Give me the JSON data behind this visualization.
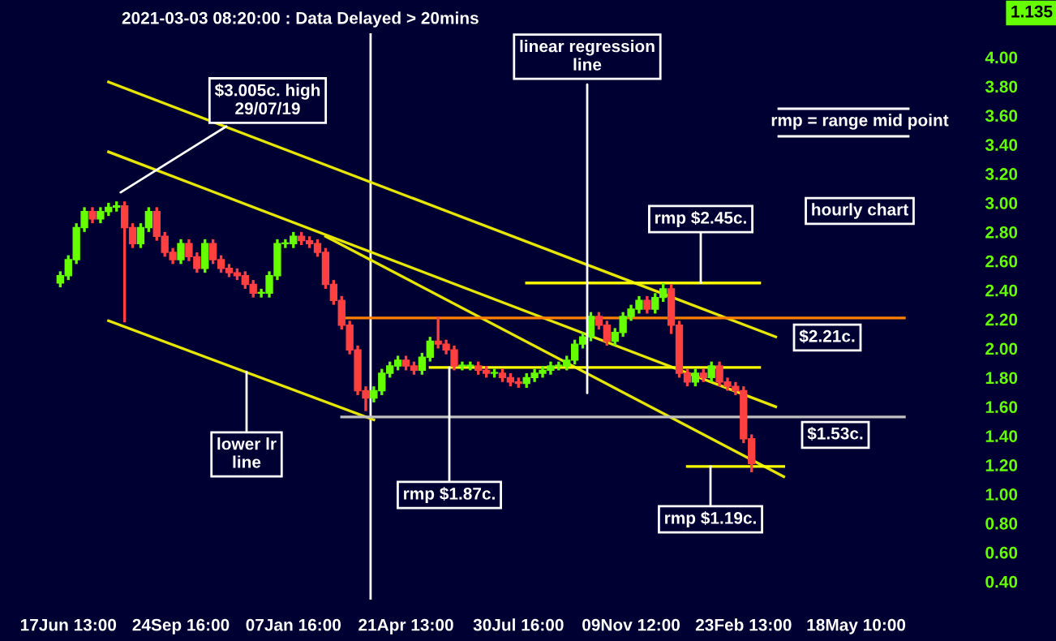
{
  "chart_data": {
    "type": "candlestick",
    "title": "2021-03-03 08:20:00 : Data Delayed > 20mins",
    "categories": [
      null,
      null,
      null,
      null,
      null,
      null,
      null,
      null,
      "17Jun 13:00",
      null,
      null,
      null,
      null,
      null,
      null,
      null,
      null,
      null,
      null,
      null,
      null,
      null,
      "24Sep 16:00",
      null,
      null,
      null,
      null,
      null,
      null,
      null,
      null,
      null,
      null,
      null,
      null,
      null,
      "07Jan 16:00",
      null,
      null,
      null,
      null,
      null,
      null,
      null,
      null,
      null,
      null,
      null,
      null,
      null,
      "21Apr 13:00",
      null,
      null,
      null,
      null,
      null,
      null,
      null,
      null,
      null,
      null,
      null,
      null,
      null,
      "30Jul 16:00",
      null,
      null,
      null,
      null,
      null,
      null,
      null,
      null,
      null,
      null,
      null,
      null,
      null,
      "09Nov 12:00",
      null,
      null,
      null,
      null,
      null,
      null,
      null,
      null,
      null,
      null,
      null,
      null,
      null,
      "23Feb 13:00",
      null,
      null,
      null,
      null,
      null,
      null,
      null,
      null,
      null,
      null,
      null,
      null,
      null,
      "18May 10:00",
      null,
      null,
      null,
      null,
      null,
      null
    ],
    "ohlc": [
      null,
      null,
      null,
      null,
      null,
      null,
      null,
      [
        2.45,
        2.53,
        2.42,
        2.5
      ],
      [
        2.5,
        2.64,
        2.47,
        2.61
      ],
      [
        2.61,
        2.86,
        2.58,
        2.83
      ],
      [
        2.83,
        2.97,
        2.8,
        2.94
      ],
      [
        2.94,
        2.97,
        2.86,
        2.89
      ],
      [
        2.89,
        2.97,
        2.86,
        2.94
      ],
      [
        2.94,
        3.0,
        2.91,
        2.97
      ],
      [
        2.97,
        3.01,
        2.94,
        2.98
      ],
      [
        2.98,
        3.01,
        2.18,
        2.83
      ],
      [
        2.83,
        2.86,
        2.69,
        2.72
      ],
      [
        2.72,
        2.86,
        2.69,
        2.83
      ],
      [
        2.83,
        2.97,
        2.8,
        2.94
      ],
      [
        2.94,
        2.97,
        2.74,
        2.77
      ],
      [
        2.77,
        2.8,
        2.63,
        2.66
      ],
      [
        2.66,
        2.69,
        2.58,
        2.61
      ],
      [
        2.61,
        2.75,
        2.58,
        2.72
      ],
      [
        2.72,
        2.75,
        2.6,
        2.63
      ],
      [
        2.63,
        2.66,
        2.52,
        2.55
      ],
      [
        2.55,
        2.75,
        2.52,
        2.72
      ],
      [
        2.72,
        2.75,
        2.58,
        2.61
      ],
      [
        2.61,
        2.64,
        2.52,
        2.55
      ],
      [
        2.55,
        2.58,
        2.49,
        2.52
      ],
      [
        2.52,
        2.55,
        2.47,
        2.5
      ],
      [
        2.5,
        2.53,
        2.41,
        2.44
      ],
      [
        2.44,
        2.47,
        2.35,
        2.38
      ],
      [
        2.38,
        2.41,
        2.35,
        2.38
      ],
      [
        2.38,
        2.53,
        2.35,
        2.5
      ],
      [
        2.5,
        2.75,
        2.47,
        2.72
      ],
      [
        2.72,
        2.75,
        2.69,
        2.72
      ],
      [
        2.72,
        2.8,
        2.69,
        2.77
      ],
      [
        2.77,
        2.8,
        2.71,
        2.74
      ],
      [
        2.74,
        2.77,
        2.69,
        2.72
      ],
      [
        2.72,
        2.75,
        2.63,
        2.66
      ],
      [
        2.66,
        2.69,
        2.41,
        2.44
      ],
      [
        2.44,
        2.47,
        2.3,
        2.33
      ],
      [
        2.33,
        2.36,
        2.13,
        2.16
      ],
      [
        2.16,
        2.19,
        1.96,
        1.99
      ],
      [
        1.99,
        2.02,
        1.68,
        1.71
      ],
      [
        1.71,
        1.74,
        1.57,
        1.66
      ],
      [
        1.66,
        1.74,
        1.63,
        1.71
      ],
      [
        1.71,
        1.86,
        1.68,
        1.83
      ],
      [
        1.83,
        1.91,
        1.8,
        1.88
      ],
      [
        1.88,
        1.95,
        1.85,
        1.92
      ],
      [
        1.92,
        1.95,
        1.85,
        1.88
      ],
      [
        1.88,
        1.91,
        1.82,
        1.85
      ],
      [
        1.85,
        1.97,
        1.82,
        1.94
      ],
      [
        1.94,
        2.08,
        1.91,
        2.05
      ],
      [
        2.05,
        2.22,
        2.0,
        2.03
      ],
      [
        2.03,
        2.06,
        1.96,
        1.99
      ],
      [
        1.99,
        2.02,
        1.85,
        1.88
      ],
      [
        1.88,
        1.91,
        1.85,
        1.88
      ],
      [
        1.88,
        1.91,
        1.85,
        1.88
      ],
      [
        1.88,
        1.91,
        1.82,
        1.85
      ],
      [
        1.85,
        1.88,
        1.8,
        1.83
      ],
      [
        1.83,
        1.86,
        1.8,
        1.83
      ],
      [
        1.83,
        1.86,
        1.77,
        1.8
      ],
      [
        1.8,
        1.83,
        1.74,
        1.77
      ],
      [
        1.77,
        1.8,
        1.73,
        1.76
      ],
      [
        1.76,
        1.83,
        1.73,
        1.8
      ],
      [
        1.8,
        1.86,
        1.77,
        1.83
      ],
      [
        1.83,
        1.88,
        1.8,
        1.85
      ],
      [
        1.85,
        1.91,
        1.82,
        1.88
      ],
      [
        1.88,
        1.91,
        1.85,
        1.88
      ],
      [
        1.88,
        1.95,
        1.85,
        1.92
      ],
      [
        1.92,
        2.06,
        1.89,
        2.03
      ],
      [
        2.03,
        2.11,
        2.0,
        2.08
      ],
      [
        2.08,
        2.25,
        2.05,
        2.22
      ],
      [
        2.22,
        2.25,
        2.13,
        2.16
      ],
      [
        2.16,
        2.19,
        2.02,
        2.05
      ],
      [
        2.05,
        2.14,
        2.02,
        2.11
      ],
      [
        2.11,
        2.25,
        2.08,
        2.22
      ],
      [
        2.22,
        2.3,
        2.19,
        2.27
      ],
      [
        2.27,
        2.36,
        2.24,
        2.33
      ],
      [
        2.33,
        2.36,
        2.24,
        2.27
      ],
      [
        2.27,
        2.38,
        2.24,
        2.35
      ],
      [
        2.35,
        2.45,
        2.32,
        2.41
      ],
      [
        2.41,
        2.44,
        2.1,
        2.16
      ],
      [
        2.16,
        2.19,
        1.8,
        1.83
      ],
      [
        1.83,
        1.86,
        1.74,
        1.77
      ],
      [
        1.77,
        1.86,
        1.74,
        1.83
      ],
      [
        1.83,
        1.86,
        1.77,
        1.8
      ],
      [
        1.8,
        1.91,
        1.77,
        1.88
      ],
      [
        1.88,
        1.91,
        1.74,
        1.77
      ],
      [
        1.77,
        1.8,
        1.71,
        1.74
      ],
      [
        1.74,
        1.77,
        1.68,
        1.71
      ],
      [
        1.71,
        1.74,
        1.35,
        1.38
      ],
      [
        1.38,
        1.41,
        1.15,
        1.21
      ],
      null,
      null,
      null,
      null,
      null,
      null,
      null,
      null,
      null,
      null,
      null,
      null,
      null,
      null,
      null,
      null,
      null,
      null,
      null
    ],
    "colors": [
      null,
      null,
      null,
      null,
      null,
      null,
      null,
      "#66ff00",
      "#66ff00",
      "#66ff00",
      "#66ff00",
      "#ff4040",
      "#66ff00",
      "#66ff00",
      "#66ff00",
      "#ff4040",
      "#ff4040",
      "#66ff00",
      "#66ff00",
      "#ff4040",
      "#ff4040",
      "#ff4040",
      "#66ff00",
      "#ff4040",
      "#ff4040",
      "#66ff00",
      "#ff4040",
      "#ff4040",
      "#ff4040",
      "#ff4040",
      "#ff4040",
      "#ff4040",
      "#66ff00",
      "#66ff00",
      "#66ff00",
      "#66ff00",
      "#66ff00",
      "#ff4040",
      "#ff4040",
      "#ff4040",
      "#ff4040",
      "#ff4040",
      "#ff4040",
      "#ff4040",
      "#ff4040",
      "#ff4040",
      "#66ff00",
      "#66ff00",
      "#66ff00",
      "#66ff00",
      "#ff4040",
      "#ff4040",
      "#66ff00",
      "#66ff00",
      "#ff4040",
      "#ff4040",
      "#ff4040",
      "#66ff00",
      "#66ff00",
      "#ff4040",
      "#ff4040",
      "#66ff00",
      "#ff4040",
      "#ff4040",
      "#ff4040",
      "#66ff00",
      "#66ff00",
      "#66ff00",
      "#66ff00",
      "#66ff00",
      "#66ff00",
      "#66ff00",
      "#66ff00",
      "#66ff00",
      "#ff4040",
      "#ff4040",
      "#66ff00",
      "#66ff00",
      "#66ff00",
      "#66ff00",
      "#ff4040",
      "#66ff00",
      "#66ff00",
      "#ff4040",
      "#ff4040",
      "#ff4040",
      "#66ff00",
      "#ff4040",
      "#66ff00",
      "#ff4040",
      "#ff4040",
      "#ff4040",
      "#ff4040",
      "#ff4040",
      null,
      null,
      null,
      null,
      null,
      null,
      null,
      null,
      null,
      null,
      null,
      null,
      null,
      null,
      null,
      null,
      null,
      null,
      null
    ],
    "series": [
      {
        "type": "line",
        "color": "#e6e600",
        "values": [
          null,
          null,
          null,
          null,
          null,
          null,
          null,
          null,
          null,
          null,
          null,
          null,
          null,
          3.83,
          null,
          null,
          null,
          null,
          null,
          null,
          null,
          null,
          null,
          null,
          null,
          null,
          null,
          null,
          null,
          null,
          null,
          null,
          null,
          null,
          null,
          null,
          null,
          null,
          null,
          null,
          null,
          null,
          null,
          null,
          null,
          null,
          null,
          null,
          null,
          null,
          null,
          null,
          null,
          null,
          null,
          null,
          null,
          null,
          null,
          null,
          null,
          null,
          null,
          null,
          null,
          null,
          null,
          null,
          null,
          null,
          null,
          null,
          null,
          null,
          null,
          null,
          null,
          null,
          null,
          null,
          null,
          null,
          null,
          null,
          null,
          null,
          null,
          null,
          null,
          null,
          null,
          null,
          null,
          null,
          null,
          null,
          2.08,
          null,
          null,
          null,
          null,
          null,
          null,
          null,
          null,
          null,
          null,
          null,
          null,
          null,
          null,
          null,
          null
        ]
      },
      {
        "type": "line",
        "color": "#e6e600",
        "values": [
          null,
          null,
          null,
          null,
          null,
          null,
          null,
          null,
          null,
          null,
          null,
          null,
          null,
          3.35,
          null,
          null,
          null,
          null,
          null,
          null,
          null,
          null,
          null,
          null,
          null,
          null,
          null,
          null,
          null,
          null,
          null,
          null,
          null,
          null,
          null,
          null,
          null,
          null,
          null,
          null,
          null,
          null,
          null,
          null,
          null,
          null,
          null,
          null,
          null,
          null,
          null,
          null,
          null,
          null,
          null,
          null,
          null,
          null,
          null,
          null,
          null,
          null,
          null,
          null,
          null,
          null,
          null,
          null,
          null,
          null,
          null,
          null,
          null,
          null,
          null,
          null,
          null,
          null,
          null,
          null,
          null,
          null,
          null,
          null,
          null,
          null,
          null,
          null,
          null,
          null,
          null,
          null,
          null,
          null,
          null,
          null,
          1.6,
          null,
          null,
          null,
          null,
          null,
          null,
          null,
          null,
          null,
          null,
          null,
          null,
          null,
          null,
          null,
          null
        ]
      },
      {
        "type": "line",
        "color": "#e6e600",
        "values": [
          null,
          null,
          null,
          null,
          null,
          null,
          null,
          null,
          null,
          null,
          null,
          null,
          null,
          2.19,
          null,
          null,
          null,
          null,
          null,
          null,
          null,
          null,
          null,
          null,
          null,
          null,
          null,
          null,
          null,
          null,
          null,
          null,
          null,
          null,
          null,
          null,
          null,
          null,
          null,
          null,
          null,
          null,
          null,
          null,
          null,
          null,
          1.51,
          null,
          null,
          null,
          null,
          null,
          null,
          null,
          null,
          null,
          null,
          null,
          null,
          null,
          null,
          null,
          null,
          null,
          null,
          null,
          null,
          null,
          null,
          null,
          null,
          null,
          null,
          null,
          null,
          null,
          null,
          null,
          null,
          null,
          null,
          null,
          null,
          null,
          null,
          null,
          null,
          null,
          null,
          null,
          null,
          null,
          null,
          null,
          null,
          null,
          null,
          null,
          null,
          null,
          null,
          null,
          null,
          null,
          null,
          null,
          null,
          null,
          null,
          null,
          null,
          null,
          null
        ]
      },
      {
        "type": "line",
        "color": "#e6e600",
        "values": [
          null,
          null,
          null,
          null,
          null,
          null,
          null,
          null,
          null,
          null,
          null,
          null,
          null,
          null,
          null,
          null,
          null,
          null,
          null,
          null,
          null,
          null,
          null,
          null,
          null,
          null,
          null,
          null,
          null,
          null,
          null,
          null,
          null,
          null,
          null,
          null,
          null,
          null,
          null,
          null,
          2.77,
          null,
          null,
          null,
          null,
          null,
          null,
          null,
          null,
          null,
          null,
          null,
          null,
          null,
          null,
          null,
          null,
          null,
          null,
          null,
          null,
          null,
          null,
          null,
          null,
          null,
          null,
          null,
          null,
          null,
          null,
          null,
          null,
          null,
          null,
          null,
          null,
          null,
          null,
          null,
          null,
          null,
          null,
          null,
          null,
          null,
          null,
          null,
          null,
          null,
          null,
          null,
          null,
          null,
          null,
          null,
          null,
          1.12,
          null,
          null,
          null,
          null,
          null,
          null,
          null,
          null,
          null,
          null,
          null,
          null,
          null,
          null,
          null
        ]
      },
      {
        "type": "line",
        "color": "#ff8000",
        "values": [
          null,
          null,
          null,
          null,
          null,
          null,
          null,
          null,
          null,
          null,
          null,
          null,
          null,
          null,
          null,
          null,
          null,
          null,
          null,
          null,
          null,
          null,
          null,
          null,
          null,
          null,
          null,
          null,
          null,
          null,
          null,
          null,
          null,
          null,
          null,
          null,
          null,
          null,
          null,
          null,
          null,
          null,
          2.21,
          null,
          null,
          null,
          null,
          null,
          null,
          null,
          null,
          null,
          null,
          null,
          null,
          null,
          null,
          null,
          null,
          null,
          null,
          null,
          null,
          null,
          null,
          null,
          null,
          null,
          null,
          null,
          null,
          null,
          null,
          null,
          null,
          null,
          null,
          null,
          null,
          null,
          null,
          null,
          null,
          null,
          null,
          null,
          null,
          null,
          null,
          null,
          null,
          null,
          null,
          null,
          null,
          null,
          null,
          null,
          null,
          null,
          null,
          null,
          null,
          null,
          null,
          null,
          null,
          null,
          null,
          null,
          null,
          null,
          2.21
        ]
      },
      {
        "type": "line",
        "color": "#c0c0c0",
        "values": [
          null,
          null,
          null,
          null,
          null,
          null,
          null,
          null,
          null,
          null,
          null,
          null,
          null,
          null,
          null,
          null,
          null,
          null,
          null,
          null,
          null,
          null,
          null,
          null,
          null,
          null,
          null,
          null,
          null,
          null,
          null,
          null,
          null,
          null,
          null,
          null,
          null,
          null,
          null,
          null,
          null,
          null,
          1.53,
          null,
          null,
          null,
          null,
          null,
          null,
          null,
          null,
          null,
          null,
          null,
          null,
          null,
          null,
          null,
          null,
          null,
          null,
          null,
          null,
          null,
          null,
          null,
          null,
          null,
          null,
          null,
          null,
          null,
          null,
          null,
          null,
          null,
          null,
          null,
          null,
          null,
          null,
          null,
          null,
          null,
          null,
          null,
          null,
          null,
          null,
          null,
          null,
          null,
          null,
          null,
          null,
          null,
          null,
          null,
          null,
          null,
          null,
          null,
          null,
          null,
          null,
          null,
          null,
          null,
          null,
          null,
          null,
          null,
          1.53
        ]
      },
      {
        "type": "line",
        "color": "#ffff00",
        "values": [
          null,
          null,
          null,
          null,
          null,
          null,
          null,
          null,
          null,
          null,
          null,
          null,
          null,
          null,
          null,
          null,
          null,
          null,
          null,
          null,
          null,
          null,
          null,
          null,
          null,
          null,
          null,
          null,
          null,
          null,
          null,
          null,
          null,
          null,
          null,
          null,
          null,
          null,
          null,
          null,
          null,
          null,
          null,
          null,
          null,
          null,
          null,
          null,
          null,
          null,
          null,
          null,
          null,
          null,
          null,
          null,
          null,
          null,
          null,
          null,
          null,
          null,
          null,
          null,
          null,
          2.45,
          null,
          null,
          null,
          null,
          null,
          null,
          null,
          null,
          null,
          null,
          null,
          null,
          null,
          null,
          null,
          null,
          null,
          null,
          null,
          null,
          null,
          null,
          null,
          null,
          null,
          null,
          null,
          null,
          2.45,
          null,
          null,
          null,
          null,
          null,
          null,
          null,
          null,
          null,
          null,
          null,
          null,
          null,
          null,
          null,
          null,
          null,
          null
        ]
      },
      {
        "type": "line",
        "color": "#ffff00",
        "values": [
          null,
          null,
          null,
          null,
          null,
          null,
          null,
          null,
          null,
          null,
          null,
          null,
          null,
          null,
          null,
          null,
          null,
          null,
          null,
          null,
          null,
          null,
          null,
          null,
          null,
          null,
          null,
          null,
          null,
          null,
          null,
          null,
          null,
          null,
          null,
          null,
          null,
          null,
          null,
          null,
          null,
          null,
          null,
          null,
          null,
          null,
          null,
          null,
          null,
          null,
          null,
          null,
          null,
          1.87,
          null,
          null,
          null,
          null,
          null,
          null,
          null,
          null,
          null,
          null,
          null,
          null,
          null,
          null,
          null,
          null,
          null,
          null,
          null,
          null,
          null,
          null,
          null,
          null,
          null,
          null,
          null,
          null,
          null,
          null,
          null,
          null,
          null,
          null,
          null,
          null,
          null,
          null,
          null,
          null,
          1.87,
          null,
          null,
          null,
          null,
          null,
          null,
          null,
          null,
          null,
          null,
          null,
          null,
          null,
          null,
          null,
          null,
          null,
          null
        ]
      },
      {
        "type": "line",
        "color": "#ffff00",
        "values": [
          null,
          null,
          null,
          null,
          null,
          null,
          null,
          null,
          null,
          null,
          null,
          null,
          null,
          null,
          null,
          null,
          null,
          null,
          null,
          null,
          null,
          null,
          null,
          null,
          null,
          null,
          null,
          null,
          null,
          null,
          null,
          null,
          null,
          null,
          null,
          null,
          null,
          null,
          null,
          null,
          null,
          null,
          null,
          null,
          null,
          null,
          null,
          null,
          null,
          null,
          null,
          null,
          null,
          null,
          null,
          null,
          null,
          null,
          null,
          null,
          null,
          null,
          null,
          null,
          null,
          null,
          null,
          null,
          null,
          null,
          null,
          null,
          null,
          null,
          null,
          null,
          null,
          null,
          null,
          null,
          null,
          null,
          null,
          null,
          null,
          1.19,
          null,
          null,
          null,
          null,
          null,
          null,
          null,
          null,
          null,
          null,
          null,
          1.19,
          null,
          null,
          null,
          null,
          null,
          null,
          null,
          null,
          null,
          null,
          null,
          null,
          null,
          null,
          null
        ]
      }
    ],
    "annotations": [
      "$3.005c. high\n29/07/19",
      "linear regression\nline",
      "rmp = range mid point",
      "hourly chart",
      {
        "text": "rmp $2.45c.",
        "y": 2.45
      },
      "$2.21c.",
      "$1.53c.",
      {
        "text": "lower lr\nline",
        "y": 1.84
      },
      {
        "text": "rmp $1.87c.",
        "y": 1.87
      },
      {
        "text": "rmp $1.19c.",
        "y": 1.19
      },
      "1.135"
    ],
    "ylim": [
      0.27,
      4.17
    ],
    "yticks": [
      {
        "value": 0.4,
        "label": "0.40"
      },
      {
        "value": 0.6,
        "label": "0.60"
      },
      {
        "value": 0.8,
        "label": "0.80"
      },
      {
        "value": 1.0,
        "label": "1.00"
      },
      {
        "value": 1.2,
        "label": "1.20"
      },
      {
        "value": 1.4,
        "label": "1.40"
      },
      {
        "value": 1.6,
        "label": "1.60"
      },
      {
        "value": 1.8,
        "label": "1.80"
      },
      {
        "value": 2.0,
        "label": "2.00"
      },
      {
        "value": 2.2,
        "label": "2.20"
      },
      {
        "value": 2.4,
        "label": "2.40"
      },
      {
        "value": 2.6,
        "label": "2.60"
      },
      {
        "value": 2.8,
        "label": "2.80"
      },
      {
        "value": 3.0,
        "label": "3.00"
      },
      {
        "value": 3.2,
        "label": "3.20"
      },
      {
        "value": 3.4,
        "label": "3.40"
      },
      {
        "value": 3.6,
        "label": "3.60"
      },
      {
        "value": 3.8,
        "label": "3.80"
      },
      {
        "value": 4.0,
        "label": "4.00"
      }
    ],
    "grid": false,
    "legend": false
  }
}
